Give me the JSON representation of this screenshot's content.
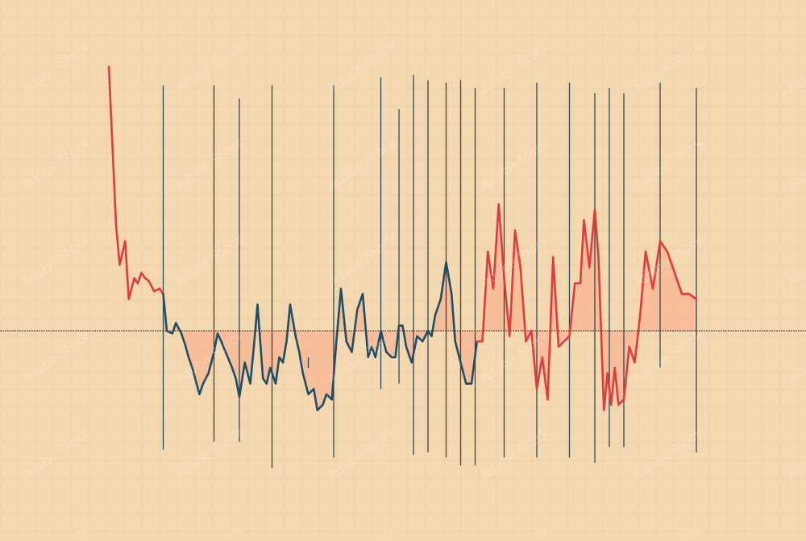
{
  "watermark": {
    "id_text": "892735664",
    "tile_text": "Adobe Stock"
  },
  "colors": {
    "background": "#f4d8b0",
    "grid": "#e9c79c",
    "baseline": "#4a3c33",
    "spike": "#2c4a5e",
    "line_up": "#e23b3d",
    "line_down": "#1f4f66",
    "fill": "#f8b592"
  },
  "chart_data": {
    "type": "line",
    "title": "",
    "xlabel": "",
    "ylabel": "",
    "grid": true,
    "baseline_value": 0,
    "ylim": [
      -100,
      100
    ],
    "segments": [
      {
        "color": "red",
        "points": [
          [
            0,
            100
          ],
          [
            4,
            40
          ],
          [
            6,
            25
          ],
          [
            9,
            34
          ],
          [
            11,
            12
          ],
          [
            14,
            20
          ],
          [
            16,
            18
          ],
          [
            18,
            22
          ],
          [
            20,
            20
          ],
          [
            22,
            19
          ],
          [
            25,
            15
          ],
          [
            28,
            16
          ],
          [
            30,
            14
          ]
        ]
      },
      {
        "color": "blue",
        "points": [
          [
            30,
            14
          ],
          [
            32,
            0
          ],
          [
            35,
            -1
          ],
          [
            37,
            3
          ],
          [
            40,
            -1
          ],
          [
            42,
            -5
          ],
          [
            44,
            -10
          ],
          [
            46,
            -14
          ],
          [
            50,
            -24
          ],
          [
            52,
            -20
          ],
          [
            55,
            -16
          ],
          [
            58,
            -8
          ],
          [
            60,
            -1
          ],
          [
            62,
            -4
          ],
          [
            65,
            -9
          ],
          [
            68,
            -14
          ],
          [
            70,
            -18
          ],
          [
            72,
            -25
          ],
          [
            75,
            -12
          ],
          [
            78,
            -20
          ],
          [
            80,
            -6
          ],
          [
            82,
            10
          ],
          [
            85,
            -18
          ],
          [
            87,
            -20
          ],
          [
            89,
            -14
          ],
          [
            92,
            -20
          ],
          [
            94,
            -10
          ],
          [
            96,
            -12
          ],
          [
            98,
            -4
          ],
          [
            100,
            10
          ],
          [
            103,
            -2
          ],
          [
            105,
            -8
          ],
          [
            107,
            -16
          ],
          [
            110,
            -24
          ],
          [
            113,
            -22
          ],
          [
            115,
            -30
          ],
          [
            118,
            -28
          ],
          [
            120,
            -24
          ],
          [
            123,
            -26
          ],
          [
            125,
            -8
          ],
          [
            128,
            16
          ],
          [
            131,
            -4
          ],
          [
            134,
            -8
          ],
          [
            137,
            8
          ],
          [
            140,
            14
          ],
          [
            143,
            -10
          ],
          [
            145,
            -6
          ],
          [
            147,
            -10
          ],
          [
            150,
            0
          ],
          [
            153,
            -8
          ],
          [
            156,
            -10
          ],
          [
            158,
            -10
          ],
          [
            160,
            2
          ],
          [
            162,
            2
          ],
          [
            164,
            -6
          ],
          [
            167,
            -12
          ],
          [
            170,
            -2
          ],
          [
            173,
            -4
          ],
          [
            176,
            0
          ],
          [
            178,
            -2
          ],
          [
            180,
            6
          ],
          [
            183,
            12
          ],
          [
            186,
            26
          ],
          [
            189,
            14
          ],
          [
            191,
            -4
          ],
          [
            194,
            -12
          ],
          [
            197,
            -20
          ],
          [
            200,
            -20
          ],
          [
            203,
            -4
          ]
        ]
      },
      {
        "color": "red",
        "points": [
          [
            203,
            -4
          ],
          [
            206,
            -4
          ],
          [
            209,
            30
          ],
          [
            212,
            16
          ],
          [
            215,
            48
          ],
          [
            218,
            20
          ],
          [
            221,
            -2
          ],
          [
            224,
            38
          ],
          [
            227,
            24
          ],
          [
            230,
            -4
          ],
          [
            233,
            0
          ],
          [
            236,
            -22
          ],
          [
            239,
            -10
          ],
          [
            242,
            -26
          ],
          [
            245,
            28
          ],
          [
            248,
            -6
          ],
          [
            251,
            -4
          ],
          [
            254,
            -2
          ],
          [
            257,
            18
          ],
          [
            260,
            18
          ],
          [
            262,
            42
          ],
          [
            265,
            24
          ],
          [
            268,
            46
          ],
          [
            270,
            28
          ],
          [
            273,
            -30
          ],
          [
            275,
            -16
          ],
          [
            277,
            -28
          ],
          [
            279,
            -14
          ],
          [
            281,
            -28
          ],
          [
            284,
            -26
          ],
          [
            287,
            -6
          ],
          [
            290,
            -12
          ],
          [
            293,
            6
          ],
          [
            296,
            30
          ],
          [
            300,
            16
          ],
          [
            304,
            34
          ],
          [
            308,
            30
          ],
          [
            312,
            22
          ],
          [
            316,
            14
          ],
          [
            320,
            14
          ],
          [
            324,
            12
          ]
        ]
      }
    ],
    "spikes": [
      {
        "x": 30,
        "y1": 93,
        "y2": -45
      },
      {
        "x": 58,
        "y1": 93,
        "y2": -42
      },
      {
        "x": 72,
        "y1": 88,
        "y2": -42
      },
      {
        "x": 90,
        "y1": 93,
        "y2": -52
      },
      {
        "x": 110,
        "y1": -10,
        "y2": -14
      },
      {
        "x": 124,
        "y1": 93,
        "y2": -48
      },
      {
        "x": 150,
        "y1": 96,
        "y2": -22
      },
      {
        "x": 160,
        "y1": 84,
        "y2": -20
      },
      {
        "x": 168,
        "y1": 97,
        "y2": -47
      },
      {
        "x": 176,
        "y1": 95,
        "y2": -46
      },
      {
        "x": 186,
        "y1": 94,
        "y2": -48
      },
      {
        "x": 194,
        "y1": 95,
        "y2": -51
      },
      {
        "x": 202,
        "y1": 92,
        "y2": -51
      },
      {
        "x": 218,
        "y1": 92,
        "y2": -48
      },
      {
        "x": 236,
        "y1": 94,
        "y2": -48
      },
      {
        "x": 254,
        "y1": 94,
        "y2": -48
      },
      {
        "x": 268,
        "y1": 90,
        "y2": -50
      },
      {
        "x": 276,
        "y1": 92,
        "y2": -44
      },
      {
        "x": 284,
        "y1": 90,
        "y2": -44
      },
      {
        "x": 304,
        "y1": 94,
        "y2": -14
      },
      {
        "x": 324,
        "y1": 92,
        "y2": -46
      }
    ],
    "fill_region": {
      "x_start": 30,
      "x_end": 324
    }
  }
}
